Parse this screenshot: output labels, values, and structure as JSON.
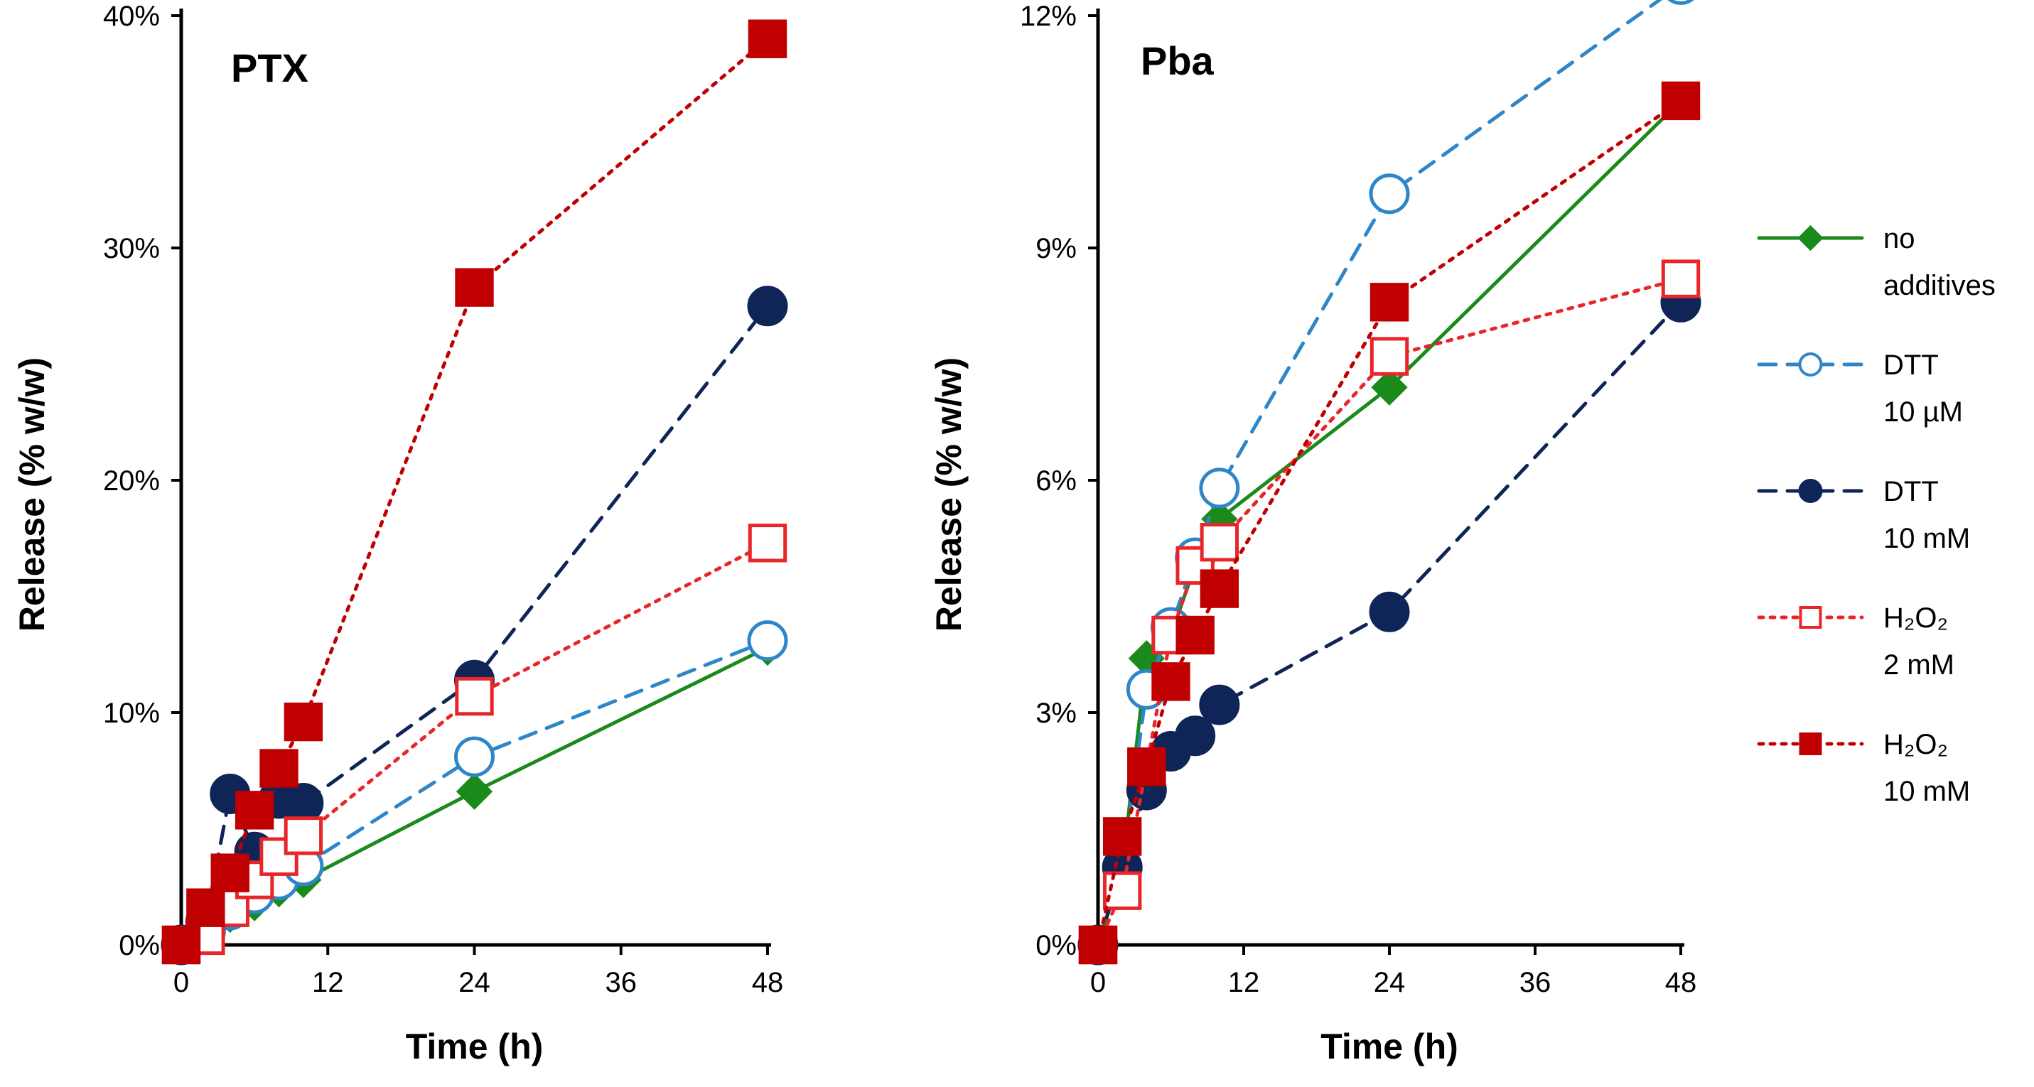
{
  "chart_data": [
    {
      "type": "line",
      "title": "PTX",
      "xlabel": "Time (h)",
      "ylabel": "Release (% w/w)",
      "xlim": [
        0,
        48
      ],
      "ylim": [
        0,
        40
      ],
      "xticks": [
        0,
        12,
        24,
        36,
        48
      ],
      "xtick_labels": [
        "0",
        "12",
        "24",
        "36",
        "48"
      ],
      "yticks": [
        0,
        10,
        20,
        30,
        40
      ],
      "ytick_labels": [
        "0%",
        "10%",
        "20%",
        "30%",
        "40%"
      ],
      "series": [
        {
          "key": "no_additives",
          "x": [
            0,
            2,
            4,
            6,
            8,
            10,
            24,
            48
          ],
          "values": [
            0,
            0.5,
            1.3,
            1.8,
            2.4,
            2.8,
            6.6,
            12.8
          ]
        },
        {
          "key": "dtt_10uM",
          "x": [
            0,
            2,
            4,
            6,
            8,
            10,
            24,
            48
          ],
          "values": [
            0,
            0.6,
            1.5,
            2.2,
            2.8,
            3.4,
            8.1,
            13.1
          ]
        },
        {
          "key": "dtt_10mM",
          "x": [
            0,
            2,
            4,
            6,
            8,
            10,
            24,
            48
          ],
          "values": [
            0,
            1.0,
            6.5,
            4.0,
            6.3,
            6.1,
            11.4,
            27.5
          ]
        },
        {
          "key": "h2o2_2mM",
          "x": [
            0,
            2,
            4,
            6,
            8,
            10,
            24,
            48
          ],
          "values": [
            0,
            0.4,
            1.6,
            2.8,
            3.8,
            4.7,
            10.7,
            17.3
          ]
        },
        {
          "key": "h2o2_10mM",
          "x": [
            0,
            2,
            4,
            6,
            8,
            10,
            24,
            48
          ],
          "values": [
            0,
            1.6,
            3.1,
            5.8,
            7.6,
            9.6,
            28.3,
            39.0
          ]
        }
      ]
    },
    {
      "type": "line",
      "title": "Pba",
      "xlabel": "Time (h)",
      "ylabel": "Release (% w/w)",
      "xlim": [
        0,
        48
      ],
      "ylim": [
        0,
        12
      ],
      "xticks": [
        0,
        12,
        24,
        36,
        48
      ],
      "xtick_labels": [
        "0",
        "12",
        "24",
        "36",
        "48"
      ],
      "yticks": [
        0,
        3,
        6,
        9,
        12
      ],
      "ytick_labels": [
        "0%",
        "3%",
        "6%",
        "9%",
        "12%"
      ],
      "series": [
        {
          "key": "no_additives",
          "x": [
            0,
            2,
            4,
            6,
            8,
            10,
            24,
            48
          ],
          "values": [
            0,
            1.0,
            3.7,
            4.0,
            4.9,
            5.5,
            7.2,
            10.9
          ]
        },
        {
          "key": "dtt_10uM",
          "x": [
            0,
            2,
            4,
            6,
            8,
            10,
            24,
            48
          ],
          "values": [
            0,
            1.0,
            3.3,
            4.1,
            5.0,
            5.9,
            9.7,
            12.4
          ]
        },
        {
          "key": "dtt_10mM",
          "x": [
            0,
            2,
            4,
            6,
            8,
            10,
            24,
            48
          ],
          "values": [
            0,
            1.0,
            2.0,
            2.5,
            2.7,
            3.1,
            4.3,
            8.3
          ]
        },
        {
          "key": "h2o2_2mM",
          "x": [
            0,
            2,
            4,
            6,
            8,
            10,
            24,
            48
          ],
          "values": [
            0,
            0.7,
            2.3,
            4.0,
            4.9,
            5.2,
            7.6,
            8.6
          ]
        },
        {
          "key": "h2o2_10mM",
          "x": [
            0,
            2,
            4,
            6,
            8,
            10,
            24,
            48
          ],
          "values": [
            0,
            1.4,
            2.3,
            3.4,
            4.0,
            4.6,
            8.3,
            10.9
          ]
        }
      ]
    }
  ],
  "legend": {
    "position": "right",
    "entries": [
      {
        "key": "no_additives",
        "line1": "no",
        "line2": "additives",
        "color": "#1a8a1a",
        "marker": "diamond",
        "filled": true,
        "dash": "solid"
      },
      {
        "key": "dtt_10uM",
        "line1": "DTT",
        "line2": "10 µM",
        "color": "#2e86c8",
        "marker": "circle",
        "filled": false,
        "dash": "dashed"
      },
      {
        "key": "dtt_10mM",
        "line1": "DTT",
        "line2": "10 mM",
        "color": "#0f2557",
        "marker": "circle",
        "filled": true,
        "dash": "dashed"
      },
      {
        "key": "h2o2_2mM",
        "line1": "H₂O₂",
        "line2": "2 mM",
        "color": "#e8262a",
        "marker": "square",
        "filled": false,
        "dash": "dotted"
      },
      {
        "key": "h2o2_10mM",
        "line1": "H₂O₂",
        "line2": "10 mM",
        "color": "#c00000",
        "marker": "square",
        "filled": true,
        "dash": "dotted"
      }
    ]
  }
}
